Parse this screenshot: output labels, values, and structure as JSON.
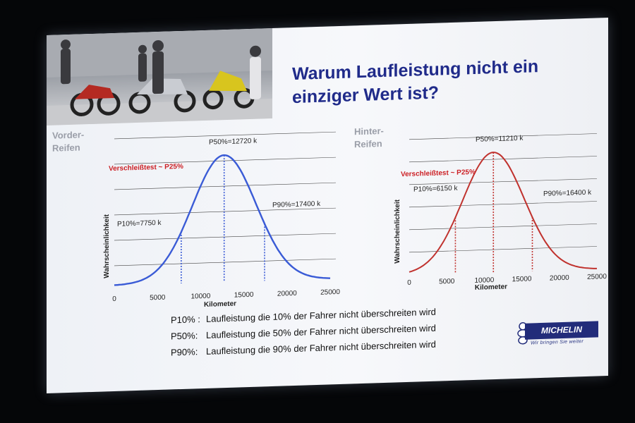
{
  "slide": {
    "title": "Warum Laufleistung nicht ein einziger Wert ist?",
    "front_label": [
      "Vorder-",
      "Reifen"
    ],
    "rear_label": [
      "Hinter-",
      "Reifen"
    ],
    "definitions": [
      {
        "key": "P10% :",
        "text": "Laufleistung die 10% der Fahrer nicht überschreiten wird"
      },
      {
        "key": "P50%:",
        "text": "Laufleistung die 50% der Fahrer nicht überschreiten wird"
      },
      {
        "key": "P90%:",
        "text": "Laufleistung die 90% der Fahrer nicht überschreiten wird"
      }
    ],
    "brand": "MICHELIN",
    "slogan": "Wir bringen Sie weiter"
  },
  "colors": {
    "title": "#202b8a",
    "front_curve": "#3a5bd6",
    "rear_curve": "#c0322e",
    "accent_red": "#cc1f24",
    "brand_blue": "#222c7a"
  },
  "chart_data": [
    {
      "type": "line",
      "curve": "normal distribution",
      "mean": 12720,
      "sd": 3700,
      "xlabel": "Kilometer",
      "ylabel": "Wahrscheinlichkeit",
      "xlim": [
        0,
        25000
      ],
      "xticks": [
        0,
        5000,
        10000,
        15000,
        20000,
        25000
      ],
      "markers": [
        {
          "x": 7750,
          "label": "P10%=7750 k"
        },
        {
          "x": 12720,
          "label": "P50%=12720 k"
        },
        {
          "x": 17400,
          "label": "P90%=17400 k"
        }
      ],
      "annotation": "Verschleißtest ~ P25%",
      "grid": true
    },
    {
      "type": "line",
      "curve": "normal distribution",
      "mean": 11210,
      "sd": 4100,
      "xlabel": "Kilometer",
      "ylabel": "Wahrscheinlichkeit",
      "xlim": [
        0,
        25000
      ],
      "xticks": [
        0,
        5000,
        10000,
        15000,
        20000,
        25000
      ],
      "markers": [
        {
          "x": 6150,
          "label": "P10%=6150 k"
        },
        {
          "x": 11210,
          "label": "P50%=11210 k"
        },
        {
          "x": 16400,
          "label": "P90%=16400 k"
        }
      ],
      "annotation": "Verschleißtest ~ P25%",
      "grid": true
    }
  ]
}
